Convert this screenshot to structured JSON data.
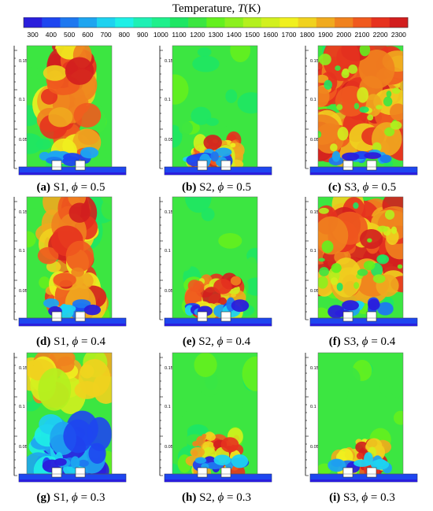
{
  "colorbar": {
    "label": "Temperature,",
    "symbol": "T",
    "unit": "(K)",
    "ticks": [
      "300",
      "400",
      "500",
      "600",
      "700",
      "800",
      "900",
      "1000",
      "1100",
      "1200",
      "1300",
      "1400",
      "1500",
      "1600",
      "1700",
      "1800",
      "1900",
      "2000",
      "2100",
      "2200",
      "2300"
    ],
    "colors": [
      "#2a1edc",
      "#1e46f0",
      "#1e78f0",
      "#1ea5f0",
      "#1ed2f0",
      "#1ef0e6",
      "#1ef0b4",
      "#1ef08c",
      "#1ee664",
      "#3ce641",
      "#64f01e",
      "#8cf01e",
      "#b4f01e",
      "#d2f01e",
      "#f0f01e",
      "#f0d21e",
      "#f0aa1e",
      "#f0821e",
      "#f05a1e",
      "#e6321e",
      "#d21e1e"
    ]
  },
  "axis_ticks": [
    "0.15",
    "0.1",
    "0.05"
  ],
  "panels": [
    {
      "id": "a",
      "tag": "(a)",
      "case": "S1,",
      "phi_label": "ϕ",
      "phi_value": "= 0.5",
      "hot": 0.75,
      "style": "column"
    },
    {
      "id": "b",
      "tag": "(b)",
      "case": "S2,",
      "phi_label": "ϕ",
      "phi_value": "= 0.5",
      "hot": 0.25,
      "style": "low"
    },
    {
      "id": "c",
      "tag": "(c)",
      "case": "S3,",
      "phi_label": "ϕ",
      "phi_value": "= 0.5",
      "hot": 0.85,
      "style": "full"
    },
    {
      "id": "d",
      "tag": "(d)",
      "case": "S1,",
      "phi_label": "ϕ",
      "phi_value": "= 0.4",
      "hot": 0.65,
      "style": "column"
    },
    {
      "id": "e",
      "tag": "(e)",
      "case": "S2,",
      "phi_label": "ϕ",
      "phi_value": "= 0.4",
      "hot": 0.35,
      "style": "low"
    },
    {
      "id": "f",
      "tag": "(f)",
      "case": "S3,",
      "phi_label": "ϕ",
      "phi_value": "= 0.4",
      "hot": 0.75,
      "style": "full"
    },
    {
      "id": "g",
      "tag": "(g)",
      "case": "S1,",
      "phi_label": "ϕ",
      "phi_value": "= 0.3",
      "hot": 0.2,
      "style": "cold"
    },
    {
      "id": "h",
      "tag": "(h)",
      "case": "S2,",
      "phi_label": "ϕ",
      "phi_value": "= 0.3",
      "hot": 0.35,
      "style": "low"
    },
    {
      "id": "i",
      "tag": "(i)",
      "case": "S3,",
      "phi_label": "ϕ",
      "phi_value": "= 0.3",
      "hot": 0.3,
      "style": "low"
    }
  ]
}
